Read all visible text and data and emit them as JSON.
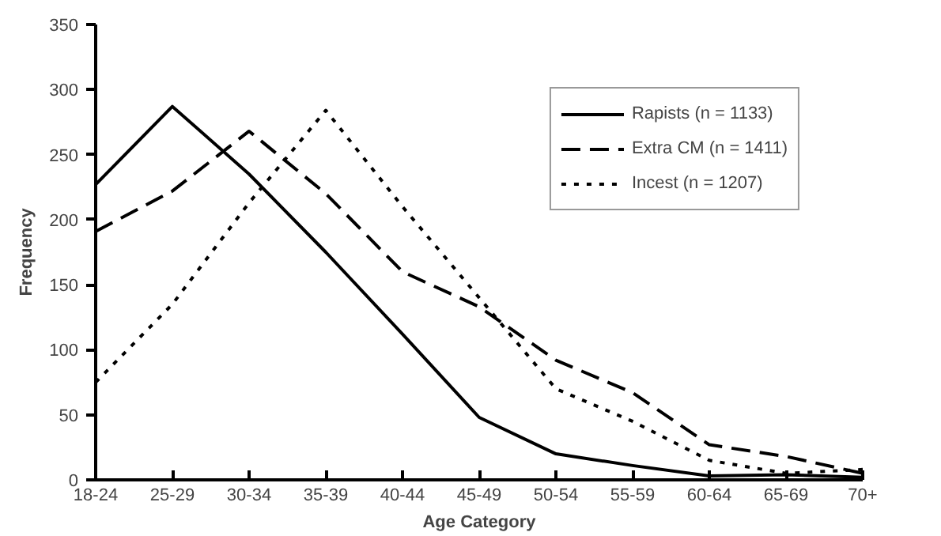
{
  "chart_data": {
    "type": "line",
    "xlabel": "Age Category",
    "ylabel": "Frequency",
    "categories": [
      "18-24",
      "25-29",
      "30-34",
      "35-39",
      "40-44",
      "45-49",
      "50-54",
      "55-59",
      "60-64",
      "65-69",
      "70+"
    ],
    "series": [
      {
        "name": "Rapists (n = 1133)",
        "color": "#000000",
        "line_style": "solid",
        "values": [
          227,
          287,
          235,
          175,
          112,
          48,
          20,
          11,
          3,
          4,
          2
        ]
      },
      {
        "name": "Extra CM (n = 1411)",
        "color": "#000000",
        "line_style": "dashed",
        "values": [
          191,
          222,
          268,
          220,
          160,
          133,
          92,
          67,
          27,
          18,
          5
        ]
      },
      {
        "name": "Incest (n = 1207)",
        "color": "#000000",
        "line_style": "dotted",
        "values": [
          75,
          135,
          213,
          284,
          210,
          140,
          70,
          45,
          15,
          5,
          8
        ]
      }
    ],
    "ylim": [
      0,
      350
    ],
    "yticks": [
      0,
      50,
      100,
      150,
      200,
      250,
      300,
      350
    ],
    "grid": false,
    "legend": "top right",
    "marker": "none"
  }
}
